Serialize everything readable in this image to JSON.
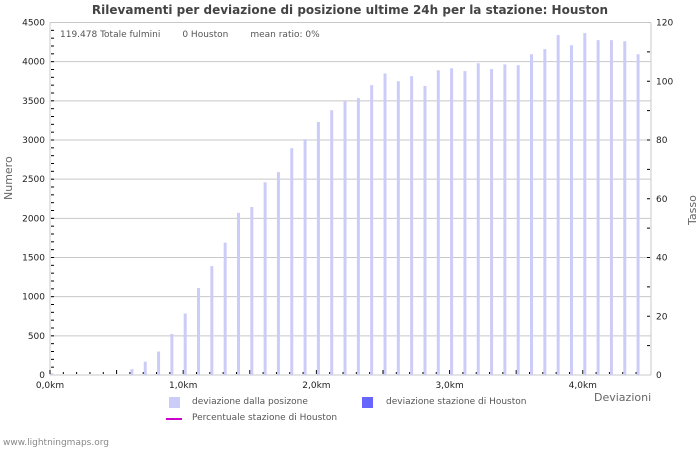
{
  "chart_data": {
    "type": "bar",
    "title": "Rilevamenti per deviazione di posizione ultime 24h per la stazione: Houston",
    "xlabel": "Deviazioni",
    "ylabel": "Numero",
    "ylabel_right": "Tasso [%]",
    "ylim": [
      0,
      4500
    ],
    "ylim_right": [
      0,
      120
    ],
    "yticks": [
      0,
      500,
      1000,
      1500,
      2000,
      2500,
      3000,
      3500,
      4000,
      4500
    ],
    "yticks_right": [
      0,
      20,
      40,
      60,
      80,
      100,
      120
    ],
    "xticks": [
      "0,0km",
      "1,0km",
      "2,0km",
      "3,0km",
      "4,0km"
    ],
    "grid": true,
    "legend_position": "bottom",
    "categories": [
      0.0,
      0.1,
      0.2,
      0.3,
      0.4,
      0.5,
      0.6,
      0.7,
      0.8,
      0.9,
      1.0,
      1.1,
      1.2,
      1.3,
      1.4,
      1.5,
      1.6,
      1.7,
      1.8,
      1.9,
      2.0,
      2.1,
      2.2,
      2.3,
      2.4,
      2.5,
      2.6,
      2.7,
      2.8,
      2.9,
      3.0,
      3.1,
      3.2,
      3.3,
      3.4,
      3.5,
      3.6,
      3.7,
      3.8,
      3.9,
      4.0,
      4.1,
      4.2,
      4.3,
      4.4
    ],
    "series": [
      {
        "name": "deviazione dalla posizone",
        "color": "#ccccf8",
        "values": [
          20,
          0,
          0,
          0,
          0,
          5,
          75,
          170,
          300,
          525,
          785,
          1110,
          1390,
          1690,
          2070,
          2145,
          2460,
          2590,
          2895,
          3010,
          3230,
          3380,
          3495,
          3535,
          3700,
          3850,
          3750,
          3815,
          3690,
          3890,
          3915,
          3880,
          3980,
          3905,
          3965,
          3955,
          4095,
          4160,
          4340,
          4210,
          4365,
          4275,
          4275,
          4260,
          4095
        ]
      },
      {
        "name": "deviazione stazione di Houston",
        "color": "#6666ff",
        "values": [
          0,
          0,
          0,
          0,
          0,
          0,
          0,
          0,
          0,
          0,
          0,
          0,
          0,
          0,
          0,
          0,
          0,
          0,
          0,
          0,
          0,
          0,
          0,
          0,
          0,
          0,
          0,
          0,
          0,
          0,
          0,
          0,
          0,
          0,
          0,
          0,
          0,
          0,
          0,
          0,
          0,
          0,
          0,
          0,
          0
        ]
      },
      {
        "name": "Percentuale stazione di Houston",
        "color": "#cc00cc",
        "type": "line",
        "values": []
      }
    ]
  },
  "stats": {
    "total": "119.478 Totale fulmini",
    "station": "0 Houston",
    "ratio": "mean ratio: 0%"
  },
  "legend": {
    "item1": "deviazione dalla posizone",
    "item2": "deviazione stazione di Houston",
    "item3": "Percentuale stazione di Houston"
  },
  "footer": "www.lightningmaps.org"
}
